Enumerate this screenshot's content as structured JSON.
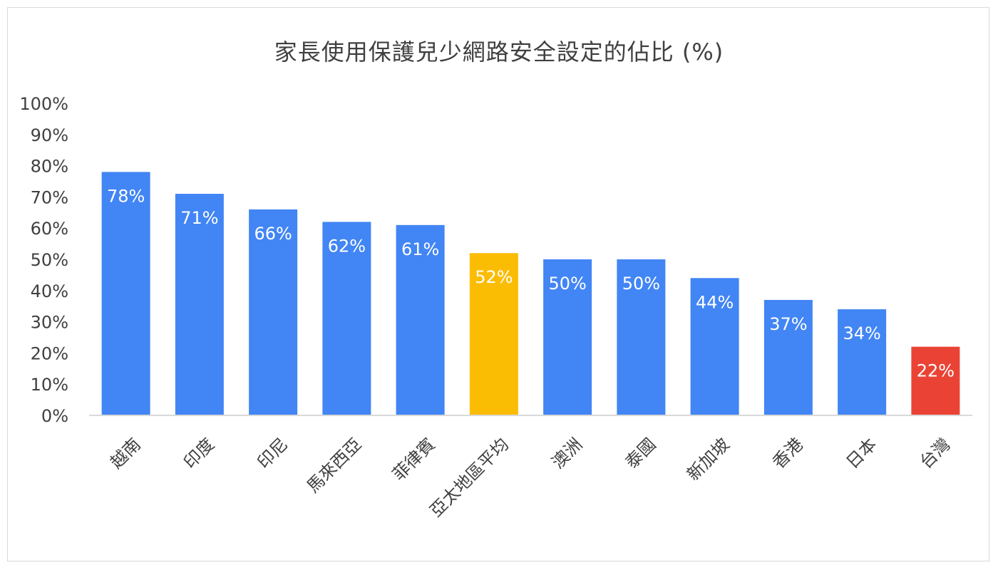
{
  "chart_data": {
    "type": "bar",
    "title": "家長使用保護兒少網路安全設定的佔比 (%)",
    "categories": [
      "越南",
      "印度",
      "印尼",
      "馬來西亞",
      "菲律賓",
      "亞太地區平均",
      "澳洲",
      "泰國",
      "新加坡",
      "香港",
      "日本",
      "台灣"
    ],
    "values": [
      78,
      71,
      66,
      62,
      61,
      52,
      50,
      50,
      44,
      37,
      34,
      22
    ],
    "data_labels": [
      "78%",
      "71%",
      "66%",
      "62%",
      "61%",
      "52%",
      "50%",
      "50%",
      "44%",
      "37%",
      "34%",
      "22%"
    ],
    "bar_colors": [
      "#4285f4",
      "#4285f4",
      "#4285f4",
      "#4285f4",
      "#4285f4",
      "#fbbc04",
      "#4285f4",
      "#4285f4",
      "#4285f4",
      "#4285f4",
      "#4285f4",
      "#ea4335"
    ],
    "ylim": [
      0,
      100
    ],
    "yticks": [
      0,
      10,
      20,
      30,
      40,
      50,
      60,
      70,
      80,
      90,
      100
    ],
    "ytick_labels": [
      "0%",
      "10%",
      "20%",
      "30%",
      "40%",
      "50%",
      "60%",
      "70%",
      "80%",
      "90%",
      "100%"
    ],
    "grid": false,
    "legend": "none",
    "xlabel": "",
    "ylabel": ""
  }
}
